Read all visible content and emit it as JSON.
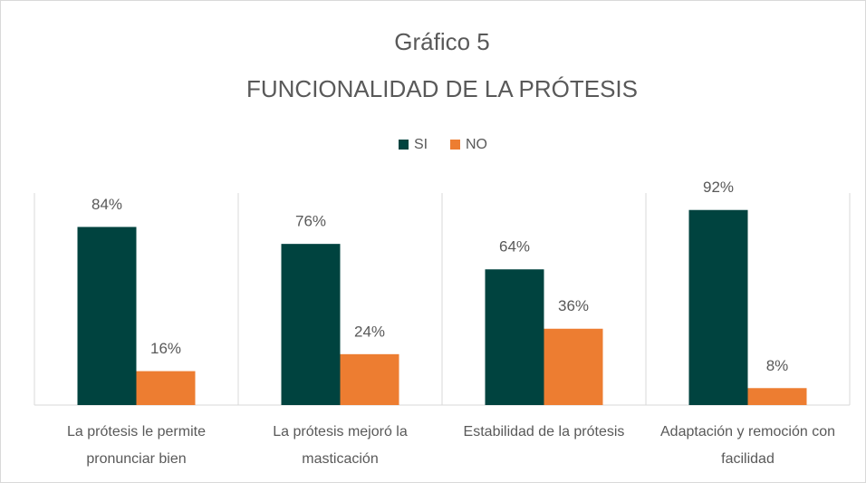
{
  "chart_data": {
    "type": "bar",
    "title": "Gráfico 5",
    "subtitle": "FUNCIONALIDAD DE LA PRÓTESIS",
    "categories": [
      "La prótesis le permite pronunciar bien",
      "La prótesis mejoró la masticación",
      "Estabilidad de la prótesis",
      "Adaptación y remoción con facilidad"
    ],
    "series": [
      {
        "name": "SI",
        "color": "#00433f",
        "values": [
          84,
          76,
          64,
          92
        ],
        "value_labels": [
          "84%",
          "76%",
          "64%",
          "92%"
        ]
      },
      {
        "name": "NO",
        "color": "#ed7d31",
        "values": [
          16,
          24,
          36,
          8
        ],
        "value_labels": [
          "16%",
          "24%",
          "36%",
          "8%"
        ]
      }
    ],
    "ylim": [
      0,
      100
    ],
    "legend": "top"
  }
}
